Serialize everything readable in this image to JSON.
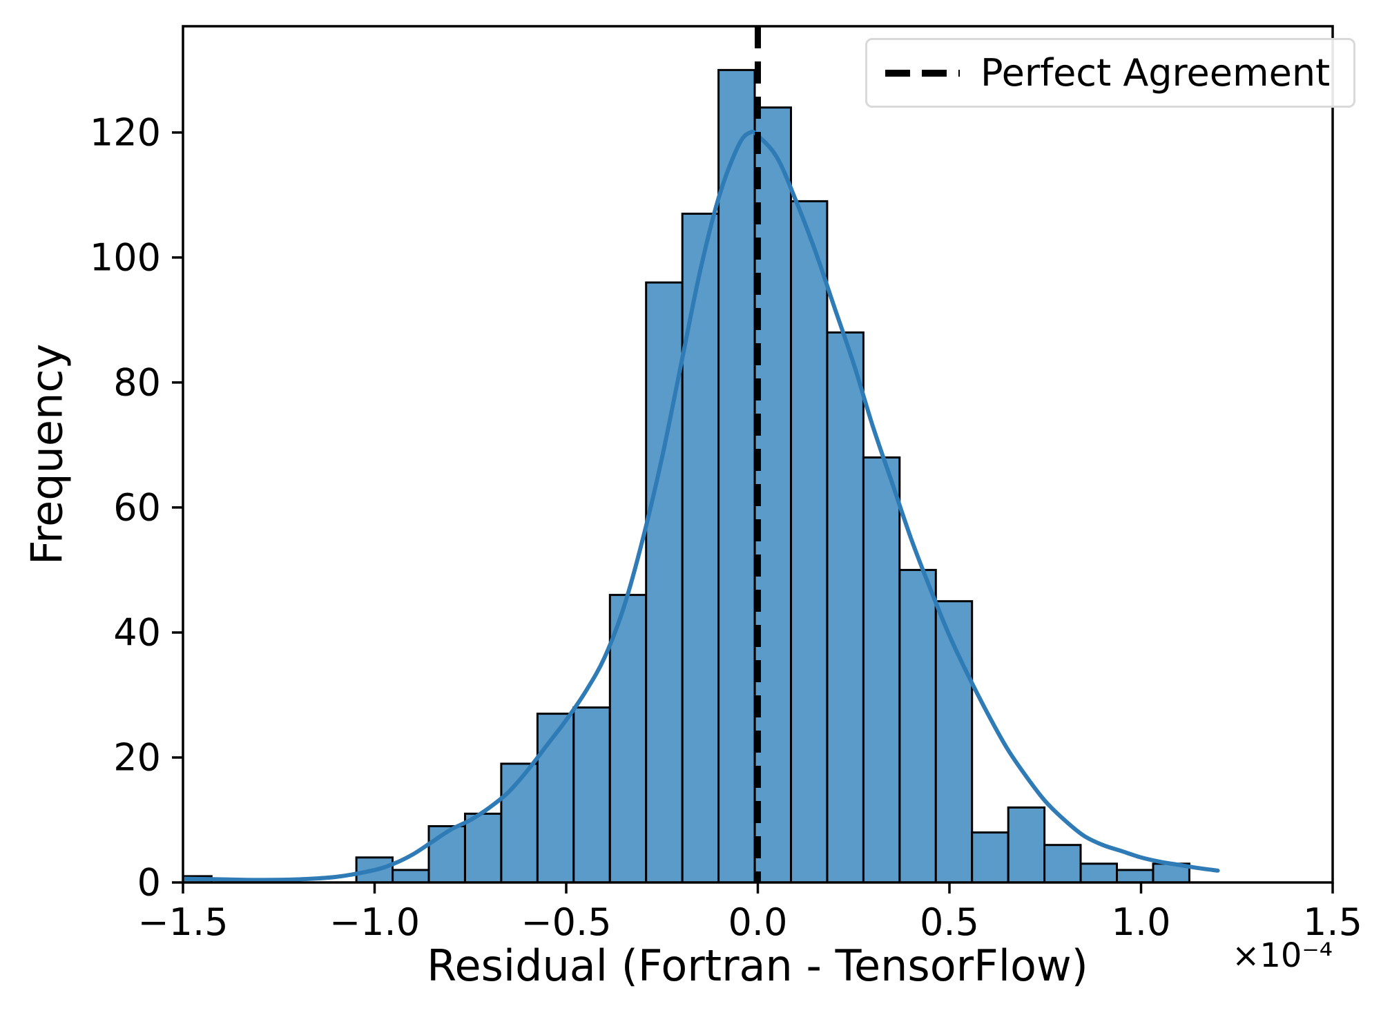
{
  "chart_data": {
    "type": "bar",
    "subtype": "histogram_with_kde",
    "title": "",
    "xlabel": "Residual (Fortran - TensorFlow)",
    "ylabel": "Frequency",
    "x_offset_text": "×10⁻⁴",
    "x_units_scale": "1e-4",
    "xlim": [
      -1.5,
      1.5
    ],
    "ylim": [
      0,
      137
    ],
    "grid": false,
    "x_ticks": [
      -1.5,
      -1.0,
      -0.5,
      0.0,
      0.5,
      1.0,
      1.5
    ],
    "x_tick_labels": [
      "−1.5",
      "−1.0",
      "−0.5",
      "0.0",
      "0.5",
      "1.0",
      "1.5"
    ],
    "y_ticks": [
      0,
      20,
      40,
      60,
      80,
      100,
      120
    ],
    "y_tick_labels": [
      "0",
      "20",
      "40",
      "60",
      "80",
      "100",
      "120"
    ],
    "bin_start": -1.52,
    "bin_width": 0.0945,
    "counts": [
      1,
      0,
      0,
      0,
      0,
      4,
      2,
      9,
      11,
      19,
      27,
      28,
      46,
      96,
      107,
      130,
      124,
      109,
      88,
      68,
      50,
      45,
      8,
      12,
      6,
      3,
      2,
      3
    ],
    "kde_curve": [
      [
        -1.5,
        0.6
      ],
      [
        -1.4,
        0.5
      ],
      [
        -1.3,
        0.4
      ],
      [
        -1.2,
        0.5
      ],
      [
        -1.1,
        0.9
      ],
      [
        -1.0,
        2.0
      ],
      [
        -0.95,
        3.0
      ],
      [
        -0.9,
        4.5
      ],
      [
        -0.85,
        6.5
      ],
      [
        -0.8,
        8.5
      ],
      [
        -0.75,
        10.0
      ],
      [
        -0.7,
        12.0
      ],
      [
        -0.65,
        14.5
      ],
      [
        -0.6,
        18.0
      ],
      [
        -0.55,
        22.0
      ],
      [
        -0.5,
        26.0
      ],
      [
        -0.45,
        30.5
      ],
      [
        -0.4,
        36.0
      ],
      [
        -0.35,
        44.0
      ],
      [
        -0.3,
        55.0
      ],
      [
        -0.25,
        68.0
      ],
      [
        -0.2,
        83.0
      ],
      [
        -0.15,
        98.0
      ],
      [
        -0.1,
        110.0
      ],
      [
        -0.05,
        118.0
      ],
      [
        -0.02,
        120.0
      ],
      [
        0.0,
        119.5
      ],
      [
        0.05,
        116.0
      ],
      [
        0.1,
        109.0
      ],
      [
        0.15,
        101.0
      ],
      [
        0.2,
        92.0
      ],
      [
        0.25,
        83.0
      ],
      [
        0.3,
        73.0
      ],
      [
        0.35,
        64.0
      ],
      [
        0.4,
        55.0
      ],
      [
        0.45,
        47.0
      ],
      [
        0.5,
        39.5
      ],
      [
        0.55,
        33.0
      ],
      [
        0.6,
        27.0
      ],
      [
        0.65,
        21.5
      ],
      [
        0.7,
        17.0
      ],
      [
        0.75,
        13.0
      ],
      [
        0.8,
        10.0
      ],
      [
        0.85,
        7.5
      ],
      [
        0.9,
        6.0
      ],
      [
        0.95,
        5.0
      ],
      [
        1.0,
        4.0
      ],
      [
        1.05,
        3.3
      ],
      [
        1.1,
        2.8
      ],
      [
        1.15,
        2.3
      ],
      [
        1.2,
        1.9
      ]
    ],
    "vline": {
      "x": 0.0,
      "label": "Perfect Agreement",
      "style": "dashed",
      "color": "#000000"
    },
    "legend_position": "upper right",
    "colors": {
      "bar_fill": "#5a9bc9",
      "bar_edge": "#000000",
      "kde_line": "#2f7bb6",
      "vline": "#000000",
      "spine": "#000000",
      "legend_border": "#d9d9d9"
    }
  },
  "legend": {
    "items": [
      {
        "label": "Perfect Agreement",
        "marker": "dashed-line",
        "color": "#000000"
      }
    ]
  }
}
